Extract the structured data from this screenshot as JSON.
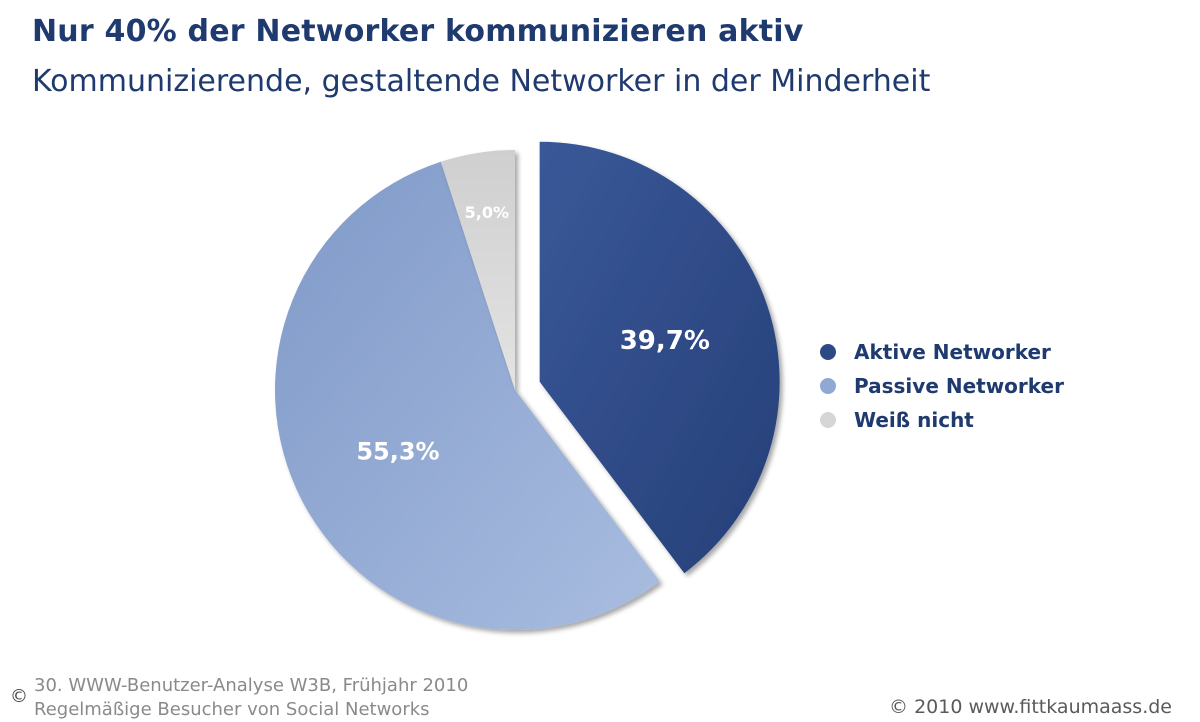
{
  "chart_data": {
    "type": "pie",
    "title": "Nur 40% der Networker kommunizieren aktiv",
    "subtitle": "Kommunizierende, gestaltende Networker in der Minderheit",
    "categories": [
      "Aktive Networker",
      "Passive Networker",
      "Weiß nicht"
    ],
    "values": [
      39.7,
      55.3,
      5.0
    ],
    "value_labels": [
      "39,7%",
      "55,3%",
      "5,0%"
    ],
    "colors": [
      "#2e4a85",
      "#8fa8d4",
      "#d6d6d6"
    ],
    "exploded": [
      "Aktive Networker"
    ],
    "legend_position": "right"
  },
  "footer": {
    "source_line1": "30. WWW-Benutzer-Analyse W3B, Frühjahr 2010",
    "source_line2": "Regelmäßige Besucher von Social Networks",
    "copyright": "© 2010 www.fittkaumaass.de",
    "copy_symbol": "©"
  }
}
